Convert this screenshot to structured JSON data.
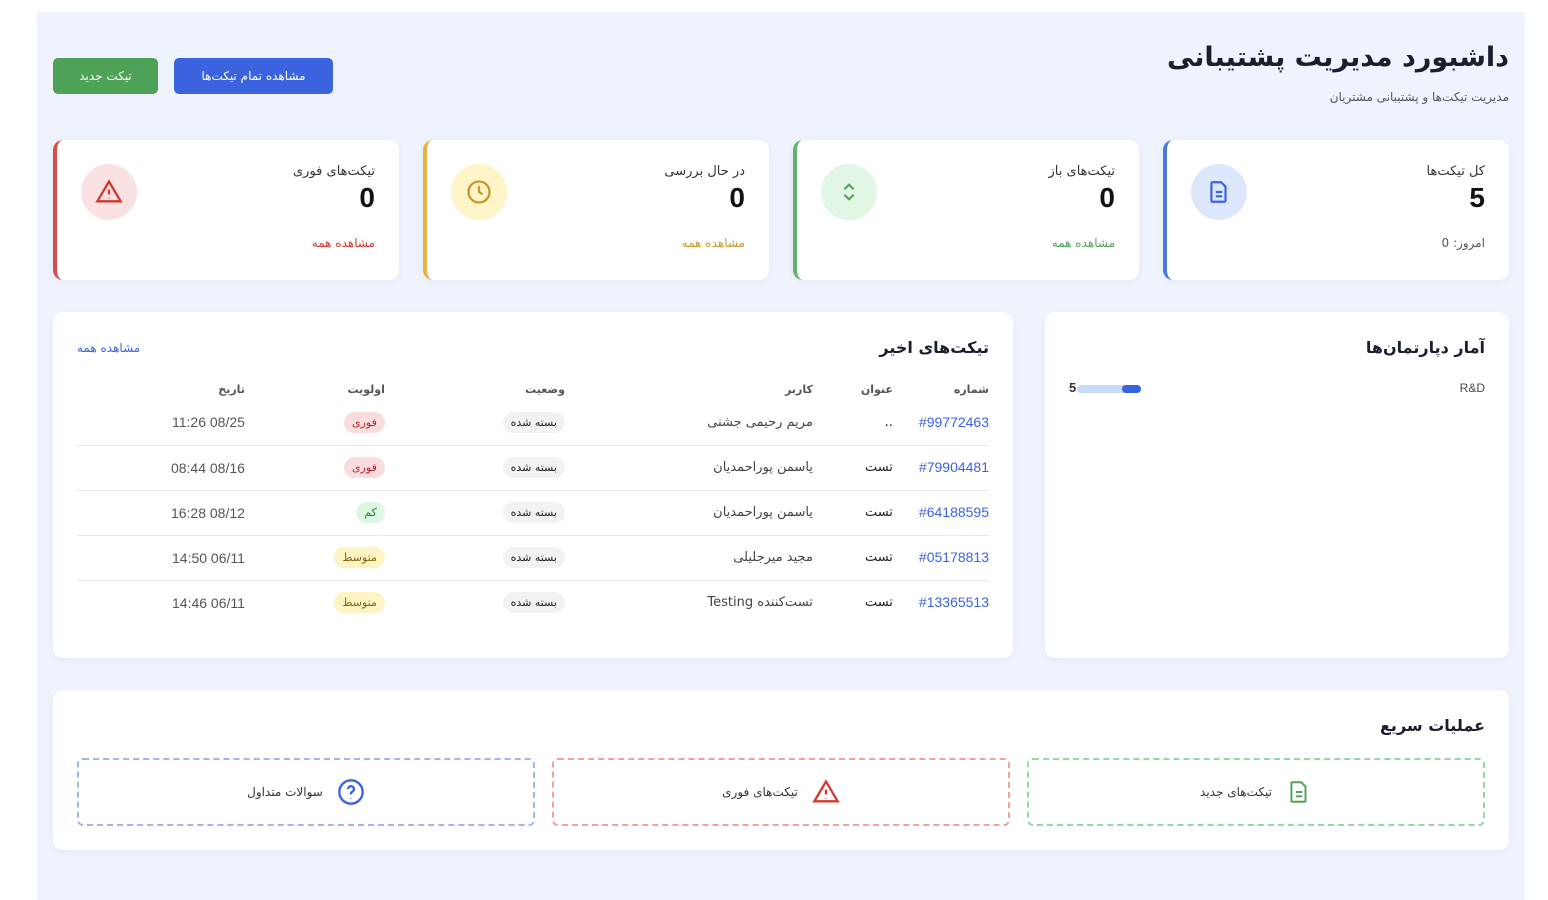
{
  "header": {
    "title": "داشبورد مدیریت پشتیبانی",
    "subtitle": "مدیریت تیکت‌ها و پشتیبانی مشتریان",
    "view_all_button": "مشاهده تمام تیکت‌ها",
    "new_ticket_button": "تیکت جدید"
  },
  "colors": {
    "blue": "#3b63e0",
    "green": "#4ea257",
    "yellow": "#e6b43c",
    "red": "#dc4b4b"
  },
  "stats": [
    {
      "label": "کل تیکت‌ها",
      "value": "5",
      "footer": "امروز: 0",
      "icon": "document-icon"
    },
    {
      "label": "تیکت‌های باز",
      "value": "0",
      "footer": "مشاهده همه",
      "icon": "chevrons-up-down-icon"
    },
    {
      "label": "در حال بررسی",
      "value": "0",
      "footer": "مشاهده همه",
      "icon": "clock-icon"
    },
    {
      "label": "تیکت‌های فوری",
      "value": "0",
      "footer": "مشاهده همه",
      "icon": "warning-icon"
    }
  ],
  "departments": {
    "title": "آمار دپارتمان‌ها",
    "items": [
      {
        "name": "R&D",
        "count": "5"
      }
    ]
  },
  "recent": {
    "title": "تیکت‌های اخیر",
    "view_all": "مشاهده همه",
    "columns": [
      "شماره",
      "عنوان",
      "کاربر",
      "وضعیت",
      "اولویت",
      "تاریخ"
    ],
    "rows": [
      {
        "id": "#99772463",
        "title": "..",
        "user": "مریم رحیمی جشنی",
        "status": "بسته شده",
        "priority": "فوری",
        "date": "11:26 08/25"
      },
      {
        "id": "#79904481",
        "title": "تست",
        "user": "یاسمن پوراحمدیان",
        "status": "بسته شده",
        "priority": "فوری",
        "date": "08:44 08/16"
      },
      {
        "id": "#64188595",
        "title": "تست",
        "user": "یاسمن پوراحمدیان",
        "status": "بسته شده",
        "priority": "کم",
        "date": "16:28 08/12"
      },
      {
        "id": "#05178813",
        "title": "تست",
        "user": "مجید میرجلیلی",
        "status": "بسته شده",
        "priority": "متوسط",
        "date": "14:50 06/11"
      },
      {
        "id": "#13365513",
        "title": "تست",
        "user": "تست‌کننده Testing",
        "status": "بسته شده",
        "priority": "متوسط",
        "date": "14:46 06/11"
      }
    ]
  },
  "quick": {
    "title": "عملیات سریع",
    "items": [
      {
        "label": "تیکت‌های جدید",
        "icon": "file-icon"
      },
      {
        "label": "تیکت‌های فوری",
        "icon": "warning-icon"
      },
      {
        "label": "سوالات متداول",
        "icon": "question-circle-icon"
      }
    ]
  }
}
